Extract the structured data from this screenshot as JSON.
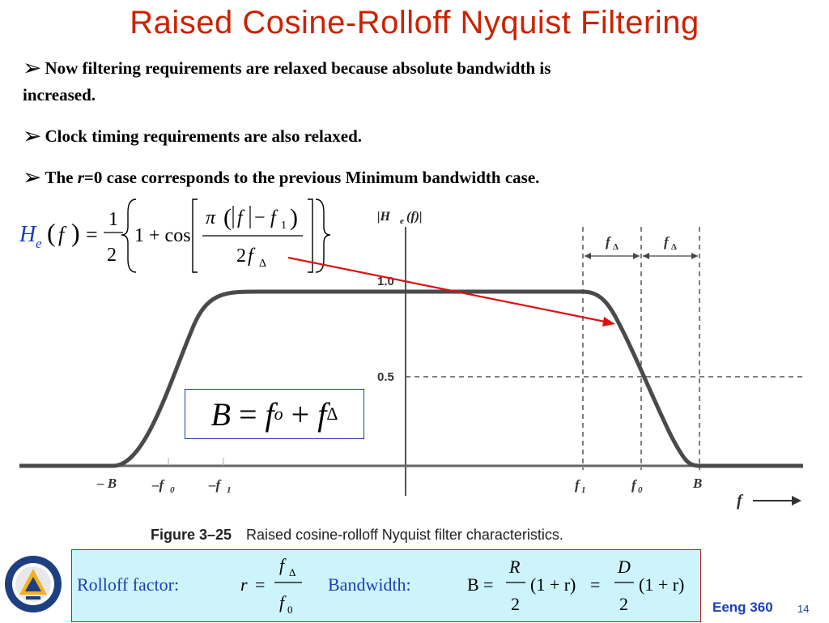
{
  "slide": {
    "title": "Raised Cosine-Rolloff  Nyquist Filtering",
    "bullets": [
      {
        "line1": "Now filtering requirements are relaxed because absolute bandwidth is",
        "line2": "increased."
      },
      {
        "line1": "Clock timing requirements are also relaxed."
      },
      {
        "pre": "The ",
        "var": "r",
        "post": "=0 case corresponds to the previous Minimum bandwidth case."
      }
    ],
    "formula_he": {
      "lhs": "H",
      "lhs_sub": "e",
      "arg": "f",
      "half_num": "1",
      "half_den": "2",
      "one_plus_cos": "1 + cos",
      "pi": "π",
      "f": "f",
      "f1": "f",
      "f1_sub": "1",
      "den_two": "2",
      "den_f": "f",
      "den_sub": "Δ"
    },
    "bandwidth_eq": {
      "B": "B",
      "eq": "=",
      "fo": "f",
      "fo_sub": "o",
      "plus": "+",
      "fd": "f",
      "fd_sub": "Δ"
    },
    "figure": {
      "ylabel": "|H",
      "ylabel_sub": "e",
      "ylabel_tail": "(f)|",
      "ticks_y": [
        "1.0",
        "0.5"
      ],
      "ticks_x": [
        "– B",
        "–f",
        "–f",
        "f",
        "f",
        "B"
      ],
      "ticks_x_sub": [
        "",
        "0",
        "1",
        "1",
        "0",
        ""
      ],
      "f_delta_label": "f",
      "f_delta_sub": "Δ",
      "f_axis": "f",
      "caption_num": "Figure 3–25",
      "caption_text": "Raised cosine-rolloff Nyquist filter characteristics."
    },
    "bottom": {
      "rolloff_label": "Rolloff factor:",
      "r": "r",
      "eq": "=",
      "num": "f",
      "num_sub": "Δ",
      "den": "f",
      "den_sub": "0",
      "bandwidth_label": "Bandwidth:",
      "B": "B",
      "R": "R",
      "two": "2",
      "one_plus_r": "(1 + r)",
      "D": "D"
    },
    "footer": {
      "course": "Eeng 360",
      "page": "14"
    }
  },
  "colors": {
    "title": "#cc2200",
    "accent_blue": "#1a3fb8",
    "arrow_red": "#e01010",
    "box_fill": "#cdf4fb"
  }
}
